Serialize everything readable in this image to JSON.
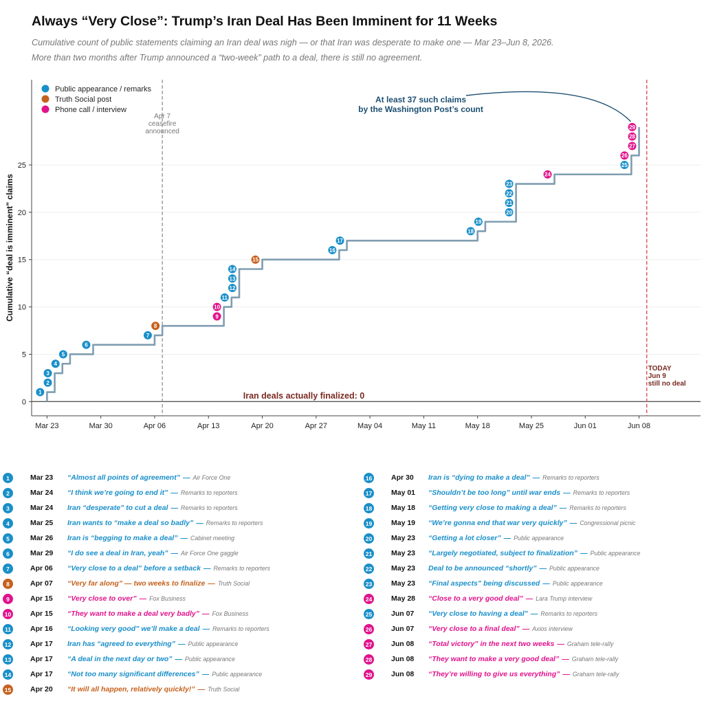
{
  "title": "Always “Very Close”: Trump’s Iran Deal Has Been Imminent for 11 Weeks",
  "subtitle_1": "Cumulative count of public statements claiming an Iran deal was nigh — or that Iran was desperate to make one — Mar 23–Jun 8, 2026.",
  "subtitle_2": "More than two months after Trump announced a “two-week” path to a deal, there is still no agreement.",
  "colors": {
    "public": "#1a8fc9",
    "truth": "#c6611d",
    "phone": "#e0138c",
    "step_line": "#7f9db0",
    "today_line": "#d9534f",
    "annotation": "#1c4f72",
    "finalized": "#7a2a22"
  },
  "chart_data": {
    "type": "line",
    "xlabel": "",
    "ylabel": "Cumulative “deal is imminent” claims",
    "ylim": [
      -1.5,
      34
    ],
    "xlim": [
      "2026-03-21",
      "2026-06-16"
    ],
    "y_ticks": [
      0,
      5,
      10,
      15,
      20,
      25
    ],
    "x_ticks": [
      {
        "date": "2026-03-23",
        "label": "Mar 23"
      },
      {
        "date": "2026-03-30",
        "label": "Mar 30"
      },
      {
        "date": "2026-04-06",
        "label": "Apr 06"
      },
      {
        "date": "2026-04-13",
        "label": "Apr 13"
      },
      {
        "date": "2026-04-20",
        "label": "Apr 20"
      },
      {
        "date": "2026-04-27",
        "label": "Apr 27"
      },
      {
        "date": "2026-05-04",
        "label": "May 04"
      },
      {
        "date": "2026-05-11",
        "label": "May 11"
      },
      {
        "date": "2026-05-18",
        "label": "May 18"
      },
      {
        "date": "2026-05-25",
        "label": "May 25"
      },
      {
        "date": "2026-06-01",
        "label": "Jun 01"
      },
      {
        "date": "2026-06-08",
        "label": "Jun 08"
      }
    ],
    "grid": "horizontal",
    "legend_position": "top-left",
    "legend": [
      {
        "key": "public",
        "label": "Public appearance / remarks"
      },
      {
        "key": "truth",
        "label": "Truth Social post"
      },
      {
        "key": "phone",
        "label": "Phone call / interview"
      }
    ],
    "ceasefire_line": {
      "date": "2026-04-07",
      "label_lines": [
        "Apr 7",
        "ceasefire",
        "announced"
      ]
    },
    "today_line": {
      "date": "2026-06-09",
      "label_lines": [
        "TODAY",
        "Jun 9",
        "still no deal"
      ]
    },
    "zero_label": "Iran deals actually finalized: 0",
    "count_annotation": [
      "At least 37 such claims",
      "by the Washington Post’s count"
    ],
    "claims": [
      {
        "n": 1,
        "date": "2026-03-23",
        "label": "Mar 23",
        "type": "public",
        "quote": "“Almost all points of agreement”",
        "source": "Air Force One"
      },
      {
        "n": 2,
        "date": "2026-03-24",
        "label": "Mar 24",
        "type": "public",
        "quote": "“I think we’re going to end it”",
        "source": "Remarks to reporters"
      },
      {
        "n": 3,
        "date": "2026-03-24",
        "label": "Mar 24",
        "type": "public",
        "quote": "Iran “desperate” to cut a deal",
        "source": "Remarks to reporters"
      },
      {
        "n": 4,
        "date": "2026-03-25",
        "label": "Mar 25",
        "type": "public",
        "quote": "Iran wants to “make a deal so badly”",
        "source": "Remarks to reporters"
      },
      {
        "n": 5,
        "date": "2026-03-26",
        "label": "Mar 26",
        "type": "public",
        "quote": "Iran is “begging to make a deal”",
        "source": "Cabinet meeting"
      },
      {
        "n": 6,
        "date": "2026-03-29",
        "label": "Mar 29",
        "type": "public",
        "quote": "“I do see a deal in Iran, yeah”",
        "source": "Air Force One gaggle"
      },
      {
        "n": 7,
        "date": "2026-04-06",
        "label": "Apr 06",
        "type": "public",
        "quote": "“Very close to a deal” before a setback",
        "source": "Remarks to reporters"
      },
      {
        "n": 8,
        "date": "2026-04-07",
        "label": "Apr 07",
        "type": "truth",
        "quote": "“Very far along” — two weeks to finalize",
        "source": "Truth Social"
      },
      {
        "n": 9,
        "date": "2026-04-15",
        "label": "Apr 15",
        "type": "phone",
        "quote": "“Very close to over”",
        "source": "Fox Business"
      },
      {
        "n": 10,
        "date": "2026-04-15",
        "label": "Apr 15",
        "type": "phone",
        "quote": "“They want to make a deal very badly”",
        "source": "Fox Business"
      },
      {
        "n": 11,
        "date": "2026-04-16",
        "label": "Apr 16",
        "type": "public",
        "quote": "“Looking very good” we’ll make a deal",
        "source": "Remarks to reporters"
      },
      {
        "n": 12,
        "date": "2026-04-17",
        "label": "Apr 17",
        "type": "public",
        "quote": "Iran has “agreed to everything”",
        "source": "Public appearance"
      },
      {
        "n": 13,
        "date": "2026-04-17",
        "label": "Apr 17",
        "type": "public",
        "quote": "“A deal in the next day or two”",
        "source": "Public appearance"
      },
      {
        "n": 14,
        "date": "2026-04-17",
        "label": "Apr 17",
        "type": "public",
        "quote": "“Not too many significant differences”",
        "source": "Public appearance"
      },
      {
        "n": 15,
        "date": "2026-04-20",
        "label": "Apr 20",
        "type": "truth",
        "quote": "“It will all happen, relatively quickly!”",
        "source": "Truth Social"
      },
      {
        "n": 16,
        "date": "2026-04-30",
        "label": "Apr 30",
        "type": "public",
        "quote": "Iran is “dying to make a deal”",
        "source": "Remarks to reporters"
      },
      {
        "n": 17,
        "date": "2026-05-01",
        "label": "May 01",
        "type": "public",
        "quote": "“Shouldn’t be too long” until war ends",
        "source": "Remarks to reporters"
      },
      {
        "n": 18,
        "date": "2026-05-18",
        "label": "May 18",
        "type": "public",
        "quote": "“Getting very close to making a deal”",
        "source": "Remarks to reporters"
      },
      {
        "n": 19,
        "date": "2026-05-19",
        "label": "May 19",
        "type": "public",
        "quote": "“We’re gonna end that war very quickly”",
        "source": "Congressional picnic"
      },
      {
        "n": 20,
        "date": "2026-05-23",
        "label": "May 23",
        "type": "public",
        "quote": "“Getting a lot closer”",
        "source": "Public appearance"
      },
      {
        "n": 21,
        "date": "2026-05-23",
        "label": "May 23",
        "type": "public",
        "quote": "“Largely negotiated, subject to finalization”",
        "source": "Public appearance"
      },
      {
        "n": 22,
        "date": "2026-05-23",
        "label": "May 23",
        "type": "public",
        "quote": "Deal to be announced “shortly”",
        "source": "Public appearance"
      },
      {
        "n": 23,
        "date": "2026-05-23",
        "label": "May 23",
        "type": "public",
        "quote": "“Final aspects” being discussed",
        "source": "Public appearance"
      },
      {
        "n": 24,
        "date": "2026-05-28",
        "label": "May 28",
        "type": "phone",
        "quote": "“Close to a very good deal”",
        "source": "Lara Trump interview"
      },
      {
        "n": 25,
        "date": "2026-06-07",
        "label": "Jun 07",
        "type": "public",
        "quote": "“Very close to having a deal”",
        "source": "Remarks to reporters"
      },
      {
        "n": 26,
        "date": "2026-06-07",
        "label": "Jun 07",
        "type": "phone",
        "quote": "“Very close to a final deal”",
        "source": "Axios interview"
      },
      {
        "n": 27,
        "date": "2026-06-08",
        "label": "Jun 08",
        "type": "phone",
        "quote": "“Total victory” in the next two weeks",
        "source": "Graham tele-rally"
      },
      {
        "n": 28,
        "date": "2026-06-08",
        "label": "Jun 08",
        "type": "phone",
        "quote": "“They want to make a very good deal”",
        "source": "Graham tele-rally"
      },
      {
        "n": 29,
        "date": "2026-06-08",
        "label": "Jun 08",
        "type": "phone",
        "quote": "“They’re willing to give us everything”",
        "source": "Graham tele-rally"
      }
    ]
  }
}
